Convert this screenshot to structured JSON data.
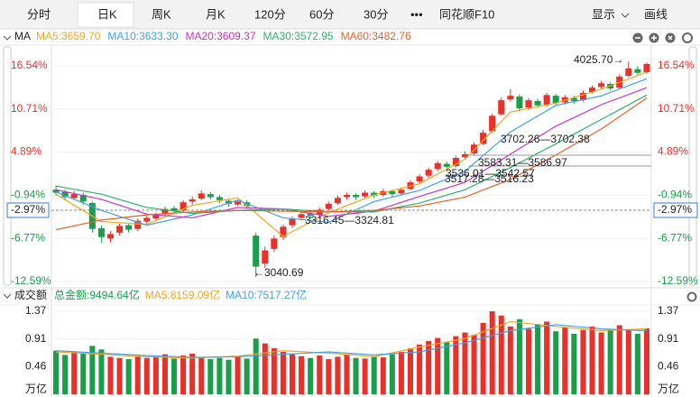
{
  "toolbar": {
    "tabs": [
      "分时",
      "日K",
      "周K",
      "月K",
      "120分",
      "60分",
      "30分",
      "•••",
      "同花顺F10"
    ],
    "display": "显示",
    "draw": "画线"
  },
  "chart_data": [
    {
      "type": "candlestick",
      "indicator_label": "MA",
      "up_color": "#e8312a",
      "down_color": "#1a9e4b",
      "ylim": [
        -13.34,
        18.13
      ],
      "yticks": [
        {
          "value": 16.54,
          "label": "16.54%"
        },
        {
          "value": 10.71,
          "label": "10.71%"
        },
        {
          "value": 4.89,
          "label": "4.89%"
        },
        {
          "value": -0.94,
          "label": "-0.94%"
        },
        {
          "value": -6.77,
          "label": "-6.77%"
        },
        {
          "value": -12.59,
          "label": "-12.59%"
        }
      ],
      "ref_line": {
        "value": -2.97,
        "label": "-2.97%"
      },
      "annotations": [
        "4025.70→",
        "←3040.69",
        "3316.45—3324.81",
        "3702.26—3702.38",
        "3583.31—3586.97",
        "3536.01—3542.57",
        "3517.28—3516.23"
      ],
      "ohlc": [
        [
          -0.2,
          0.3,
          -1.0,
          -0.6
        ],
        [
          -0.5,
          -0.2,
          -1.6,
          -1.2
        ],
        [
          -1.3,
          -0.4,
          -1.5,
          -0.8
        ],
        [
          -0.9,
          -0.6,
          -2.2,
          -1.8
        ],
        [
          -2.0,
          -1.8,
          -6.0,
          -5.5
        ],
        [
          -5.4,
          -5.0,
          -7.4,
          -6.6
        ],
        [
          -6.8,
          -5.8,
          -7.3,
          -6.2
        ],
        [
          -6.0,
          -4.8,
          -6.4,
          -5.1
        ],
        [
          -5.0,
          -4.7,
          -6.0,
          -5.6
        ],
        [
          -5.5,
          -4.1,
          -5.8,
          -4.4
        ],
        [
          -4.5,
          -3.7,
          -4.8,
          -4.0
        ],
        [
          -4.1,
          -3.3,
          -4.4,
          -3.6
        ],
        [
          -3.5,
          -2.5,
          -3.8,
          -2.8
        ],
        [
          -2.7,
          -2.4,
          -3.4,
          -3.1
        ],
        [
          -3.0,
          -1.6,
          -3.2,
          -1.9
        ],
        [
          -1.8,
          -1.1,
          -2.2,
          -1.5
        ],
        [
          -1.4,
          -0.3,
          -1.6,
          -0.7
        ],
        [
          -0.8,
          -0.5,
          -1.5,
          -1.2
        ],
        [
          -1.2,
          -0.9,
          -2.0,
          -1.6
        ],
        [
          -1.7,
          -1.4,
          -2.5,
          -2.1
        ],
        [
          -2.2,
          -1.5,
          -2.4,
          -1.8
        ],
        [
          -1.9,
          -1.6,
          -2.8,
          -2.4
        ],
        [
          -6.4,
          -6.0,
          -12.0,
          -10.6
        ],
        [
          -10.2,
          -7.9,
          -10.8,
          -8.4
        ],
        [
          -8.2,
          -6.4,
          -8.6,
          -6.8
        ],
        [
          -6.6,
          -4.9,
          -7.0,
          -5.2
        ],
        [
          -5.0,
          -3.8,
          -5.4,
          -4.1
        ],
        [
          -4.0,
          -3.2,
          -4.3,
          -3.5
        ],
        [
          -3.4,
          -3.2,
          -4.1,
          -3.7
        ],
        [
          -3.6,
          -2.6,
          -3.8,
          -2.9
        ],
        [
          -2.8,
          -1.8,
          -3.0,
          -2.1
        ],
        [
          -2.0,
          -1.0,
          -2.2,
          -1.3
        ],
        [
          -1.2,
          -0.6,
          -1.5,
          -0.9
        ],
        [
          -0.9,
          -0.7,
          -1.6,
          -1.2
        ],
        [
          -1.1,
          -0.3,
          -1.3,
          -0.6
        ],
        [
          -0.6,
          -0.4,
          -1.3,
          -1.0
        ],
        [
          -0.9,
          -0.1,
          -1.1,
          -0.4
        ],
        [
          -0.4,
          -0.2,
          -1.1,
          -0.8
        ],
        [
          -0.7,
          0.1,
          -0.9,
          -0.2
        ],
        [
          -0.1,
          1.1,
          -0.3,
          0.8
        ],
        [
          0.9,
          1.9,
          0.6,
          1.6
        ],
        [
          1.7,
          2.8,
          1.4,
          2.5
        ],
        [
          2.6,
          3.7,
          2.3,
          3.4
        ],
        [
          3.3,
          3.6,
          2.6,
          2.9
        ],
        [
          3.0,
          4.4,
          2.8,
          4.1
        ],
        [
          4.2,
          5.0,
          3.9,
          4.6
        ],
        [
          4.7,
          6.2,
          4.5,
          5.9
        ],
        [
          6.0,
          7.9,
          5.8,
          7.5
        ],
        [
          7.7,
          10.1,
          7.5,
          9.8
        ],
        [
          10.0,
          12.3,
          9.8,
          11.9
        ],
        [
          12.0,
          13.4,
          11.7,
          12.5
        ],
        [
          12.4,
          12.7,
          10.4,
          10.8
        ],
        [
          10.9,
          12.2,
          10.6,
          11.9
        ],
        [
          11.8,
          12.1,
          10.9,
          11.2
        ],
        [
          11.3,
          12.9,
          11.0,
          12.6
        ],
        [
          12.5,
          12.8,
          11.2,
          11.5
        ],
        [
          11.6,
          12.6,
          11.3,
          12.3
        ],
        [
          12.2,
          12.5,
          11.4,
          11.8
        ],
        [
          11.9,
          13.2,
          11.7,
          12.9
        ],
        [
          13.0,
          13.9,
          12.8,
          13.6
        ],
        [
          13.7,
          14.5,
          13.4,
          14.2
        ],
        [
          14.1,
          14.3,
          13.2,
          13.5
        ],
        [
          13.6,
          15.4,
          13.4,
          15.1
        ],
        [
          15.2,
          17.1,
          15.0,
          16.2
        ],
        [
          16.1,
          16.5,
          15.3,
          15.6
        ],
        [
          15.7,
          17.0,
          15.5,
          16.8
        ]
      ],
      "ma_x": [
        0,
        5,
        10,
        15,
        20,
        25,
        30,
        35,
        40,
        45,
        50,
        55,
        60,
        65
      ],
      "series": [
        {
          "name": "MA5:3659.70",
          "color": "#f5a623",
          "values": [
            -0.8,
            -4.5,
            -4.9,
            -2.3,
            -1.3,
            -6.5,
            -3.3,
            -0.9,
            0.6,
            3.9,
            10.3,
            11.5,
            13.4,
            15.7
          ]
        },
        {
          "name": "MA10:3633.30",
          "color": "#3fa2e8",
          "values": [
            -0.5,
            -3.0,
            -5.0,
            -3.6,
            -1.6,
            -4.0,
            -4.6,
            -1.8,
            -0.3,
            2.3,
            7.6,
            11.2,
            12.5,
            14.8
          ]
        },
        {
          "name": "MA20:3609.37",
          "color": "#c832c8",
          "values": [
            -0.2,
            -1.5,
            -3.5,
            -4.0,
            -2.6,
            -2.8,
            -3.8,
            -3.1,
            -1.1,
            0.8,
            4.6,
            8.4,
            11.3,
            13.6
          ]
        },
        {
          "name": "MA30:3572.95",
          "color": "#2db36b",
          "values": [
            0.3,
            -0.8,
            -2.6,
            -3.4,
            -3.0,
            -2.8,
            -3.2,
            -3.2,
            -2.0,
            -0.2,
            2.8,
            6.0,
            9.3,
            12.6
          ]
        },
        {
          "name": "MA60:3482.76",
          "color": "#e8622a",
          "values": [
            -5.6,
            -4.3,
            -3.6,
            -3.2,
            -3.0,
            -3.1,
            -3.2,
            -3.0,
            -2.4,
            -1.2,
            1.2,
            4.5,
            8.0,
            12.2
          ]
        }
      ]
    },
    {
      "type": "bar",
      "title": "成交额",
      "total_label": "总金额:9494.64亿",
      "total_color": "#1a9e4b",
      "unit": "万亿",
      "ylim": [
        0,
        1.445
      ],
      "yticks": [
        1.37,
        0.91,
        0.46
      ],
      "values": [
        0.72,
        0.65,
        0.7,
        0.68,
        0.8,
        0.74,
        0.62,
        0.6,
        0.58,
        0.62,
        0.6,
        0.63,
        0.66,
        0.59,
        0.64,
        0.67,
        0.61,
        0.58,
        0.6,
        0.57,
        0.62,
        0.59,
        0.92,
        0.84,
        0.76,
        0.7,
        0.66,
        0.63,
        0.6,
        0.64,
        0.58,
        0.62,
        0.66,
        0.6,
        0.59,
        0.63,
        0.61,
        0.66,
        0.7,
        0.76,
        0.82,
        0.88,
        0.93,
        0.86,
        0.96,
        1.02,
        0.98,
        1.18,
        1.37,
        1.3,
        1.12,
        1.24,
        1.08,
        1.16,
        1.2,
        1.04,
        1.1,
        1.0,
        1.06,
        1.12,
        1.02,
        1.08,
        1.14,
        1.06,
        1.0,
        1.09
      ],
      "ma_x": [
        0,
        5,
        10,
        15,
        20,
        25,
        30,
        35,
        40,
        45,
        50,
        55,
        60,
        65
      ],
      "series": [
        {
          "name": "MA5:8159.09亿",
          "color": "#f5a623",
          "values": [
            0.7,
            0.66,
            0.62,
            0.6,
            0.63,
            0.72,
            0.68,
            0.62,
            0.78,
            0.92,
            1.2,
            1.12,
            1.05,
            1.08
          ]
        },
        {
          "name": "MA10:7517.27亿",
          "color": "#3fa2e8",
          "values": [
            0.72,
            0.68,
            0.64,
            0.61,
            0.62,
            0.66,
            0.7,
            0.65,
            0.7,
            0.85,
            1.05,
            1.15,
            1.08,
            1.05
          ]
        }
      ]
    }
  ]
}
